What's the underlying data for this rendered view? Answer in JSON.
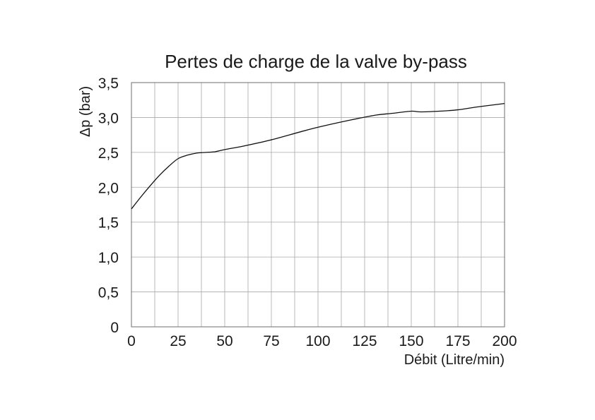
{
  "chart_data": {
    "type": "line",
    "title": "Pertes de charge de la valve by-pass",
    "xlabel": "Débit (Litre/min)",
    "ylabel": "Δp (bar)",
    "xlim": [
      0,
      200
    ],
    "ylim": [
      0,
      3.5
    ],
    "x_ticks": [
      "0",
      "25",
      "50",
      "75",
      "100",
      "125",
      "150",
      "175",
      "200"
    ],
    "y_ticks": [
      "0",
      "0,5",
      "1,0",
      "1,5",
      "2,0",
      "2,5",
      "3,0",
      "3,5"
    ],
    "grid": true,
    "series": [
      {
        "x": [
          0,
          5,
          10,
          15,
          20,
          25,
          30,
          35,
          40,
          45,
          50,
          60,
          75,
          90,
          100,
          115,
          130,
          140,
          150,
          155,
          165,
          175,
          185,
          200
        ],
        "y": [
          1.69,
          1.86,
          2.02,
          2.17,
          2.3,
          2.41,
          2.46,
          2.49,
          2.5,
          2.51,
          2.54,
          2.59,
          2.68,
          2.79,
          2.86,
          2.95,
          3.03,
          3.06,
          3.09,
          3.08,
          3.09,
          3.11,
          3.15,
          3.2
        ]
      }
    ],
    "colors": {
      "line": "#111111",
      "grid": "#a8a8a8",
      "text": "#1a1a1a"
    }
  }
}
